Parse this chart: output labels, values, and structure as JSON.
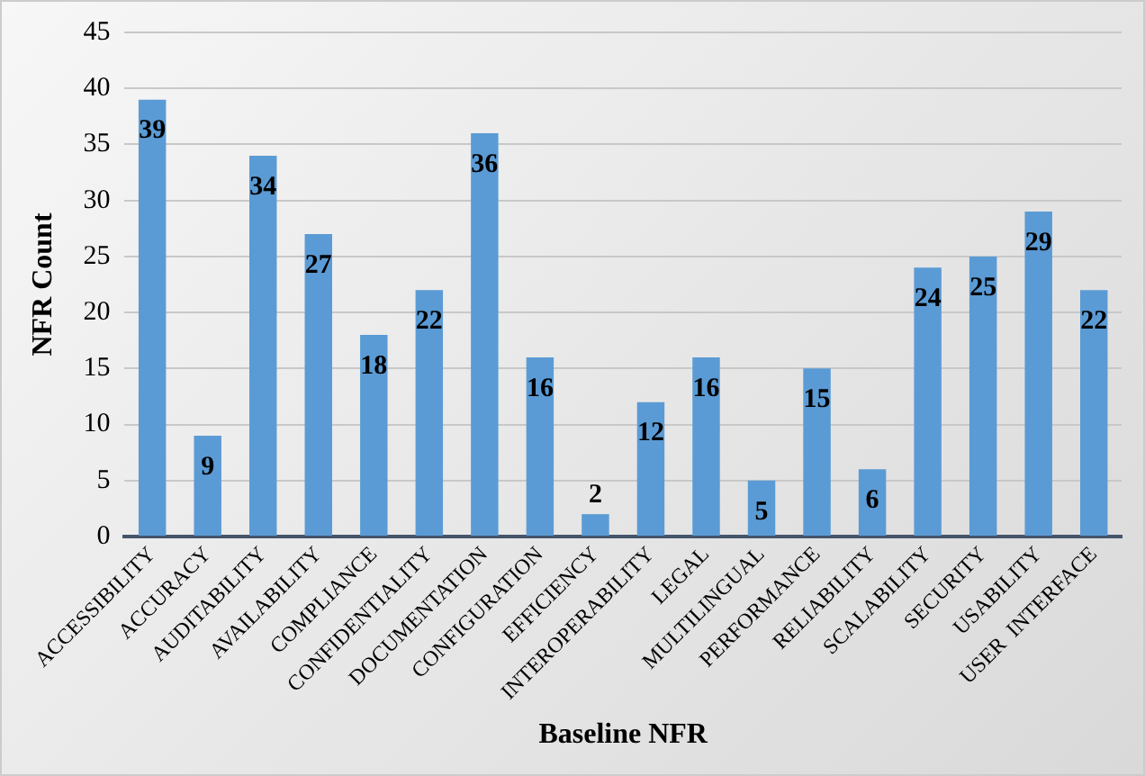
{
  "chart_data": {
    "type": "bar",
    "xlabel": "Baseline NFR",
    "ylabel": "NFR Count",
    "categories": [
      "ACCESSIBILITY",
      "ACCURACY",
      "AUDITABILITY",
      "AVAILABILITY",
      "COMPLIANCE",
      "CONFIDENTIALITY",
      "DOCUMENTATION",
      "CONFIGURATION",
      "EFFICIENCY",
      "INTEROPERABILITY",
      "LEGAL",
      "MULTILINGUAL",
      "PERFORMANCE",
      "RELIABILITY",
      "SCALABILITY",
      "SECURITY",
      "USABILITY",
      "USER  INTERFACE"
    ],
    "values": [
      39,
      9,
      34,
      27,
      18,
      22,
      36,
      16,
      2,
      12,
      16,
      5,
      15,
      6,
      24,
      25,
      29,
      22
    ],
    "color": "#5b9bd5",
    "ylim": [
      0,
      45
    ],
    "yticks": [
      0,
      5,
      10,
      15,
      20,
      25,
      30,
      35,
      40,
      45
    ],
    "grid": "y",
    "data_labels": true,
    "legend": false
  }
}
